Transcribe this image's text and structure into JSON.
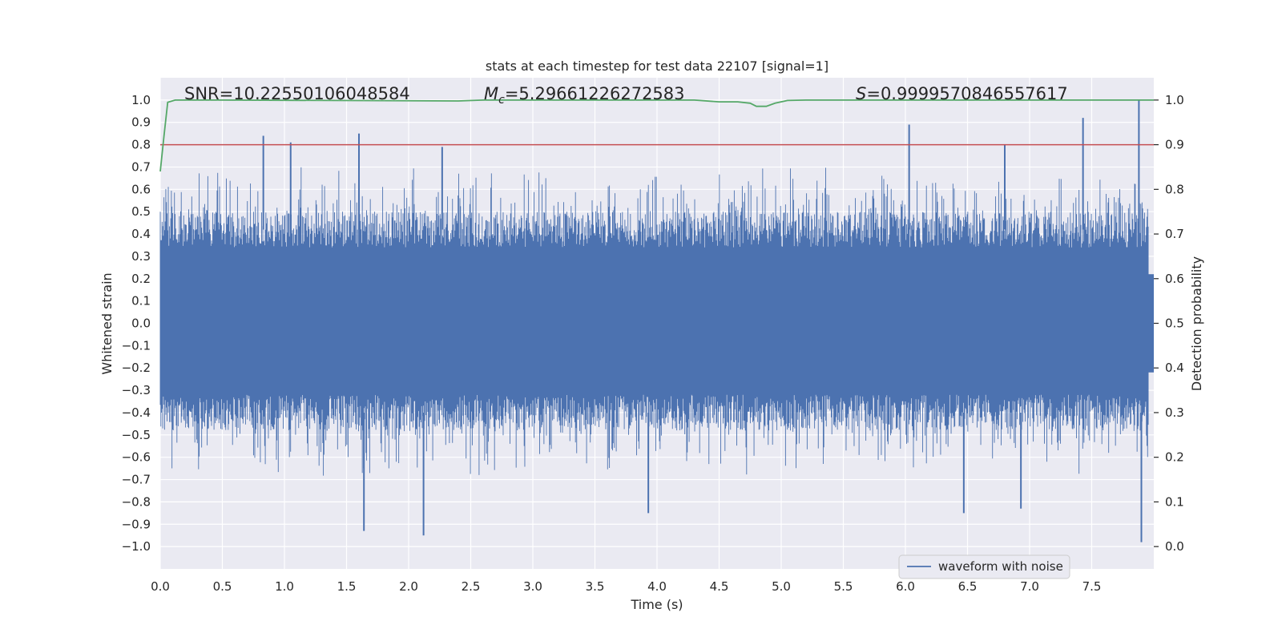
{
  "chart_data": {
    "type": "line",
    "title": "stats at each timestep for test data 22107 [signal=1]",
    "xlabel": "Time (s)",
    "ylabel": "Whitened strain",
    "y2label": "Detection probability",
    "xlim": [
      0.0,
      8.0
    ],
    "ylim": [
      -1.1,
      1.1
    ],
    "y2lim": [
      -0.05,
      1.05
    ],
    "x_ticks": [
      "0.0",
      "0.5",
      "1.0",
      "1.5",
      "2.0",
      "2.5",
      "3.0",
      "3.5",
      "4.0",
      "4.5",
      "5.0",
      "5.5",
      "6.0",
      "6.5",
      "7.0",
      "7.5"
    ],
    "y_ticks": [
      "1.0",
      "0.9",
      "0.8",
      "0.7",
      "0.6",
      "0.5",
      "0.4",
      "0.3",
      "0.2",
      "0.1",
      "0.0",
      "−0.1",
      "−0.2",
      "−0.3",
      "−0.4",
      "−0.5",
      "−0.6",
      "−0.7",
      "−0.8",
      "−0.9",
      "−1.0"
    ],
    "y2_ticks": [
      "1.0",
      "0.9",
      "0.8",
      "0.7",
      "0.6",
      "0.5",
      "0.4",
      "0.3",
      "0.2",
      "0.1",
      "0.0"
    ],
    "annotations": {
      "snr": "SNR=10.22550106048584",
      "mc_symbol": "M",
      "mc_sub": "c",
      "mc_value": "=5.29661226272583",
      "s_symbol": "S",
      "s_value": "=0.9999570846557617"
    },
    "legend": {
      "label": "waveform with noise",
      "location": "lower-right"
    },
    "threshold": {
      "value": 0.9,
      "axis": "right",
      "color": "#c44e52"
    },
    "series": [
      {
        "name": "waveform with noise",
        "axis": "left",
        "color": "#4c72b0",
        "envelope": {
          "typical_upper": 0.42,
          "typical_lower": -0.4,
          "core": 0.22
        },
        "spikes": [
          {
            "t": 0.83,
            "v": 0.84
          },
          {
            "t": 1.05,
            "v": 0.81
          },
          {
            "t": 1.6,
            "v": 0.85
          },
          {
            "t": 2.27,
            "v": 0.79
          },
          {
            "t": 6.03,
            "v": 0.89
          },
          {
            "t": 6.8,
            "v": 0.8
          },
          {
            "t": 7.43,
            "v": 0.92
          },
          {
            "t": 7.88,
            "v": 1.0
          },
          {
            "t": 1.64,
            "v": -0.93
          },
          {
            "t": 2.12,
            "v": -0.95
          },
          {
            "t": 3.93,
            "v": -0.85
          },
          {
            "t": 6.47,
            "v": -0.85
          },
          {
            "t": 6.93,
            "v": -0.83
          },
          {
            "t": 7.9,
            "v": -0.98
          }
        ]
      },
      {
        "name": "detection probability",
        "axis": "right",
        "color": "#55a868",
        "points": [
          [
            0.0,
            0.84
          ],
          [
            0.03,
            0.92
          ],
          [
            0.06,
            0.995
          ],
          [
            0.12,
            1.0
          ],
          [
            0.5,
            1.0
          ],
          [
            2.4,
            0.998
          ],
          [
            2.6,
            1.0
          ],
          [
            4.3,
            1.0
          ],
          [
            4.5,
            0.996
          ],
          [
            4.65,
            0.996
          ],
          [
            4.75,
            0.993
          ],
          [
            4.8,
            0.986
          ],
          [
            4.88,
            0.986
          ],
          [
            4.95,
            0.993
          ],
          [
            5.05,
            0.999
          ],
          [
            5.2,
            1.0
          ],
          [
            8.0,
            1.0
          ]
        ]
      }
    ]
  }
}
